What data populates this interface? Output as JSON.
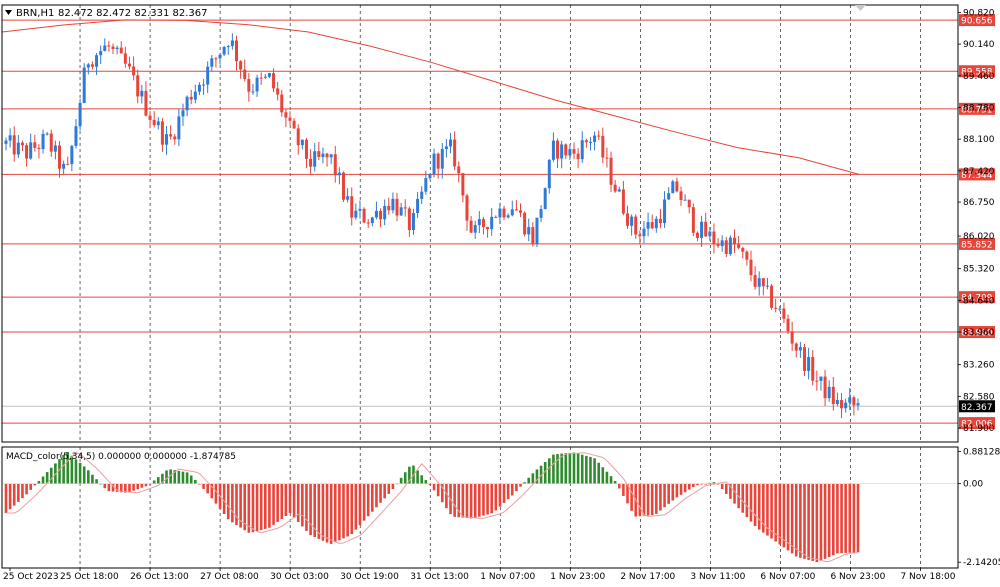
{
  "chart_data": [
    {
      "type": "candlestick",
      "symbol_label": "BRN,H1",
      "ohlc_label": "82.472 82.472 82.331 82.367",
      "ylim": [
        81.6,
        90.98
      ],
      "y_ticks": [
        "90.820",
        "90.140",
        "89.460",
        "88.780",
        "88.100",
        "87.420",
        "86.750",
        "86.020",
        "85.320",
        "84.640",
        "83.960",
        "83.260",
        "82.580",
        "81.900"
      ],
      "x_labels": [
        "25 Oct 2023",
        "25 Oct 18:00",
        "26 Oct 13:00",
        "27 Oct 08:00",
        "30 Oct 03:00",
        "30 Oct 19:00",
        "31 Oct 13:00",
        "1 Nov 07:00",
        "1 Nov 23:00",
        "2 Nov 17:00",
        "3 Nov 11:00",
        "6 Nov 07:00",
        "6 Nov 23:00",
        "7 Nov 18:00"
      ],
      "levels": [
        "90.656",
        "89.558",
        "88.751",
        "87.344",
        "85.852",
        "84.709",
        "83.960",
        "82.006"
      ],
      "current_price": "82.367",
      "moving_average": [
        90.4,
        90.55,
        90.66,
        90.65,
        90.56,
        90.4,
        90.1,
        89.75,
        89.35,
        88.95,
        88.6,
        88.25,
        87.92,
        87.7,
        87.34
      ],
      "close_path": [
        88.0,
        87.8,
        88.1,
        87.3,
        89.8,
        90.1,
        89.6,
        88.7,
        88.0,
        89.0,
        89.6,
        90.3,
        89.2,
        89.4,
        88.3,
        87.6,
        87.7,
        86.5,
        86.4,
        86.8,
        86.2,
        87.6,
        87.9,
        86.0,
        86.5,
        86.7,
        85.95,
        87.9,
        87.8,
        88.2,
        87.1,
        86.1,
        86.3,
        87.1,
        86.2,
        85.9,
        85.8,
        85.0,
        84.5,
        83.6,
        82.9,
        82.4,
        82.37
      ],
      "colors": {
        "up": "#2f7ad9",
        "down": "#e8443a",
        "level": "#e8443a",
        "ma": "#e8443a",
        "grid": "#000000"
      }
    },
    {
      "type": "bar",
      "label": "MACD_color(5,34,5) 0.000000 0.000000 -1.874785",
      "y_ticks": [
        "0.881285",
        "0.00",
        "-2.142050"
      ],
      "ylim": [
        -2.3,
        1.0
      ],
      "histogram_path": [
        -0.8,
        -0.3,
        0.3,
        0.88,
        0.4,
        -0.2,
        -0.25,
        -0.05,
        0.4,
        0.3,
        -0.3,
        -1.0,
        -1.35,
        -1.2,
        -0.8,
        -1.4,
        -1.65,
        -1.4,
        -0.8,
        -0.2,
        0.55,
        -0.1,
        -0.9,
        -0.95,
        -0.8,
        -0.3,
        0.3,
        0.8,
        0.85,
        0.7,
        0.1,
        -0.9,
        -0.85,
        -0.4,
        -0.05,
        0.05,
        -0.6,
        -1.2,
        -1.6,
        -2.0,
        -2.14,
        -1.9,
        -1.87
      ],
      "colors": {
        "positive": "#2e8b2e",
        "negative": "#e8443a",
        "signal": "#e8a0a0"
      }
    }
  ]
}
